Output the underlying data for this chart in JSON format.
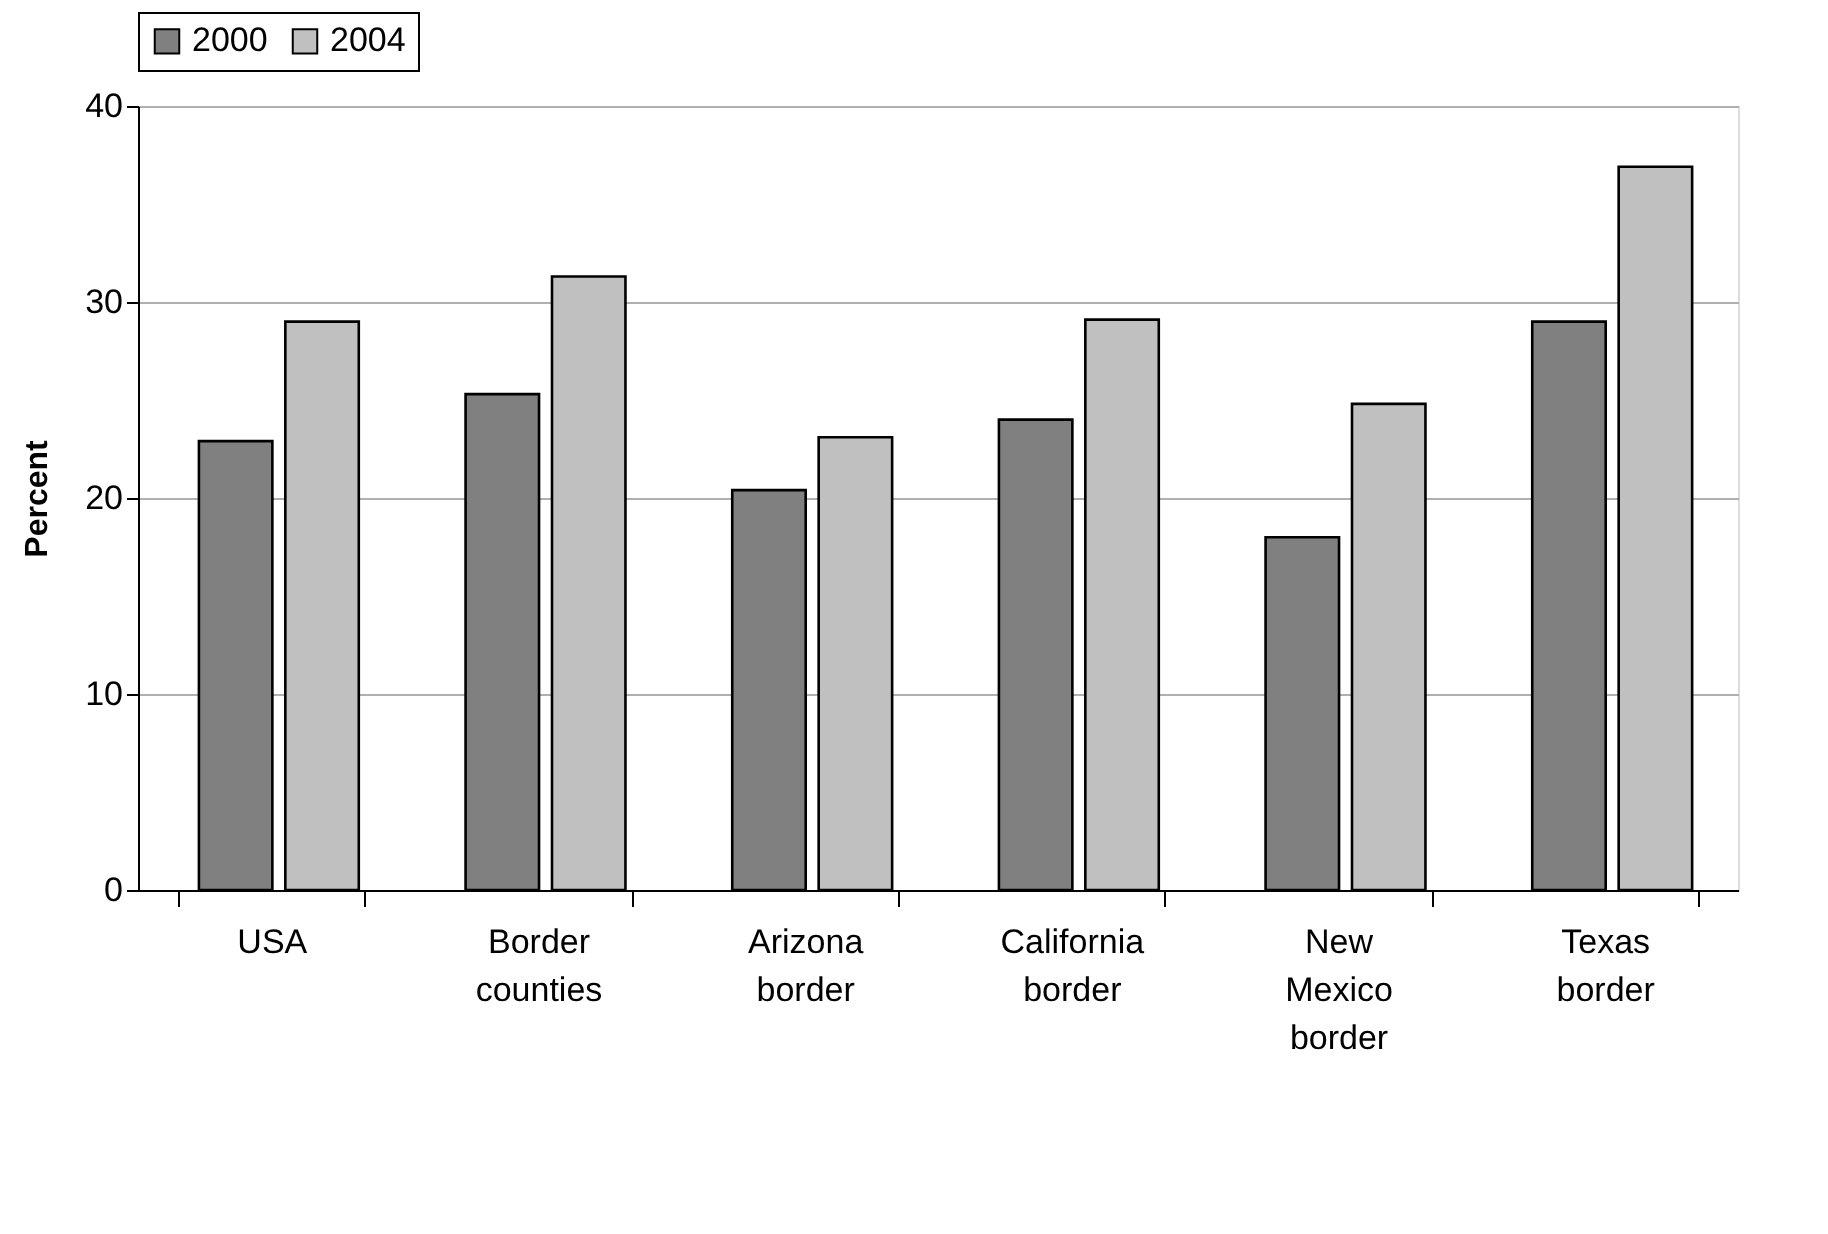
{
  "chart_data": {
    "type": "bar",
    "ylabel": "Percent",
    "categories": [
      "USA",
      "Border counties",
      "Arizona border",
      "California border",
      "New Mexico border",
      "Texas border"
    ],
    "series": [
      {
        "name": "2000",
        "color": "#808080",
        "values": [
          22.9,
          25.3,
          20.4,
          24.0,
          18.0,
          29.0
        ]
      },
      {
        "name": "2004",
        "color": "#c0c0c0",
        "values": [
          29.0,
          31.3,
          23.1,
          29.1,
          24.8,
          36.9
        ]
      }
    ],
    "ylim": [
      0,
      40
    ],
    "yticks": [
      0,
      10,
      20,
      30,
      40
    ],
    "grid": "y",
    "legend": "top"
  }
}
